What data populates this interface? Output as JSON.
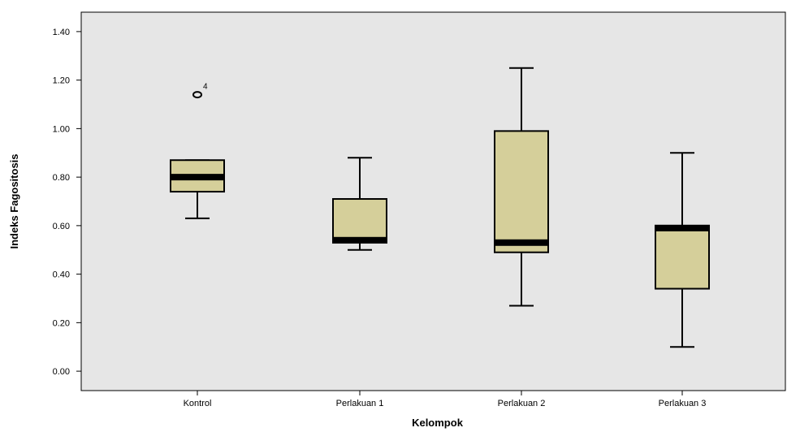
{
  "chart_data": {
    "type": "boxplot",
    "title": "",
    "xlabel": "Kelompok",
    "ylabel": "Indeks Fagositosis",
    "ylim": [
      -0.08,
      1.48
    ],
    "yticks": [
      0.0,
      0.2,
      0.4,
      0.6,
      0.8,
      1.0,
      1.2,
      1.4
    ],
    "ytick_labels": [
      "0.00",
      "0.20",
      "0.40",
      "0.60",
      "0.80",
      "1.00",
      "1.20",
      "1.40"
    ],
    "categories": [
      "Kontrol",
      "Perlakuan 1",
      "Perlakuan 2",
      "Perlakuan 3"
    ],
    "boxes": [
      {
        "category": "Kontrol",
        "whisker_low": 0.63,
        "q1": 0.74,
        "median": 0.8,
        "q3": 0.87,
        "whisker_high": 0.87,
        "outliers": [
          {
            "value": 1.14,
            "label": "4"
          }
        ]
      },
      {
        "category": "Perlakuan 1",
        "whisker_low": 0.5,
        "q1": 0.53,
        "median": 0.54,
        "q3": 0.71,
        "whisker_high": 0.88,
        "outliers": []
      },
      {
        "category": "Perlakuan 2",
        "whisker_low": 0.27,
        "q1": 0.49,
        "median": 0.53,
        "q3": 0.99,
        "whisker_high": 1.25,
        "outliers": []
      },
      {
        "category": "Perlakuan 3",
        "whisker_low": 0.1,
        "q1": 0.34,
        "median": 0.59,
        "q3": 0.6,
        "whisker_high": 0.9,
        "outliers": []
      }
    ],
    "grid": false,
    "colors": {
      "plot_background": "#e6e6e6",
      "box_fill": "#d5cf9a",
      "line": "#000000"
    }
  }
}
